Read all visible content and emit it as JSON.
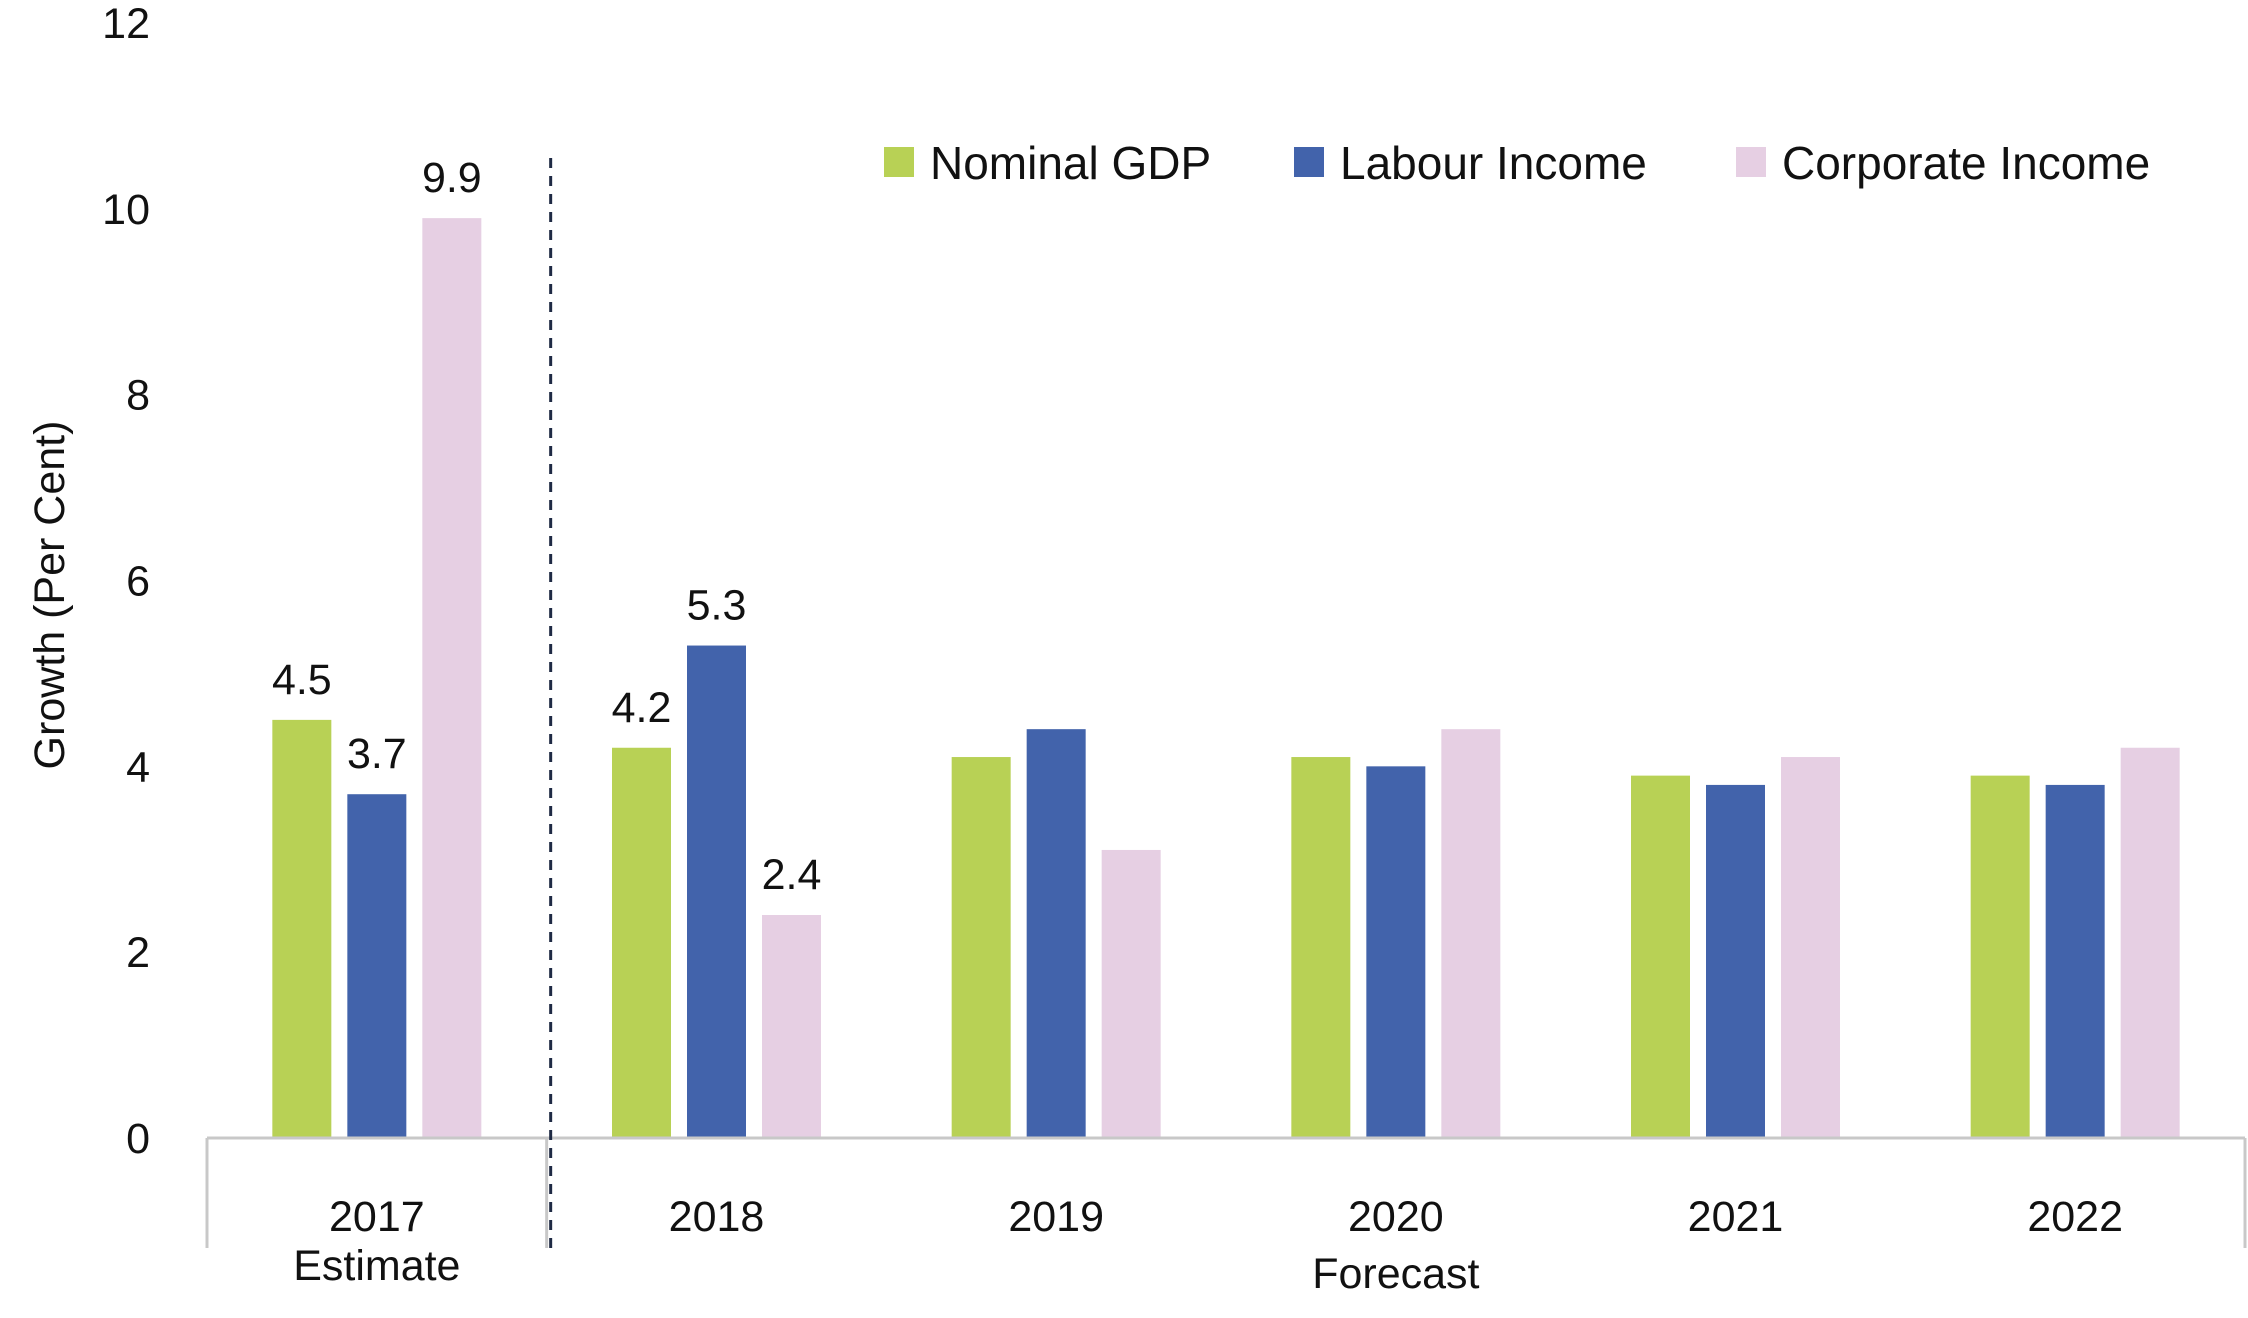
{
  "chart_data": {
    "type": "bar",
    "ylabel": "Growth (Per Cent)",
    "ylim": [
      0,
      12
    ],
    "yticks": [
      0,
      2,
      4,
      6,
      8,
      10,
      12
    ],
    "grid": false,
    "legend_position": "top-right",
    "categories": [
      "2017",
      "2018",
      "2019",
      "2020",
      "2021",
      "2022"
    ],
    "group_labels": {
      "estimate": "Estimate",
      "forecast": "Forecast"
    },
    "series": [
      {
        "name": "Nominal GDP",
        "color": "#b8d155",
        "values": [
          4.5,
          4.2,
          4.1,
          4.1,
          3.9,
          3.9
        ],
        "data_labels": [
          "4.5",
          "4.2",
          "",
          "",
          "",
          ""
        ]
      },
      {
        "name": "Labour Income",
        "color": "#4263ab",
        "values": [
          3.7,
          5.3,
          4.4,
          4.0,
          3.8,
          3.8
        ],
        "data_labels": [
          "3.7",
          "5.3",
          "",
          "",
          "",
          ""
        ]
      },
      {
        "name": "Corporate Income",
        "color": "#e6cfe3",
        "values": [
          9.9,
          2.4,
          3.1,
          4.4,
          4.1,
          4.2
        ],
        "data_labels": [
          "9.9",
          "2.4",
          "",
          "",
          "",
          ""
        ]
      }
    ]
  }
}
